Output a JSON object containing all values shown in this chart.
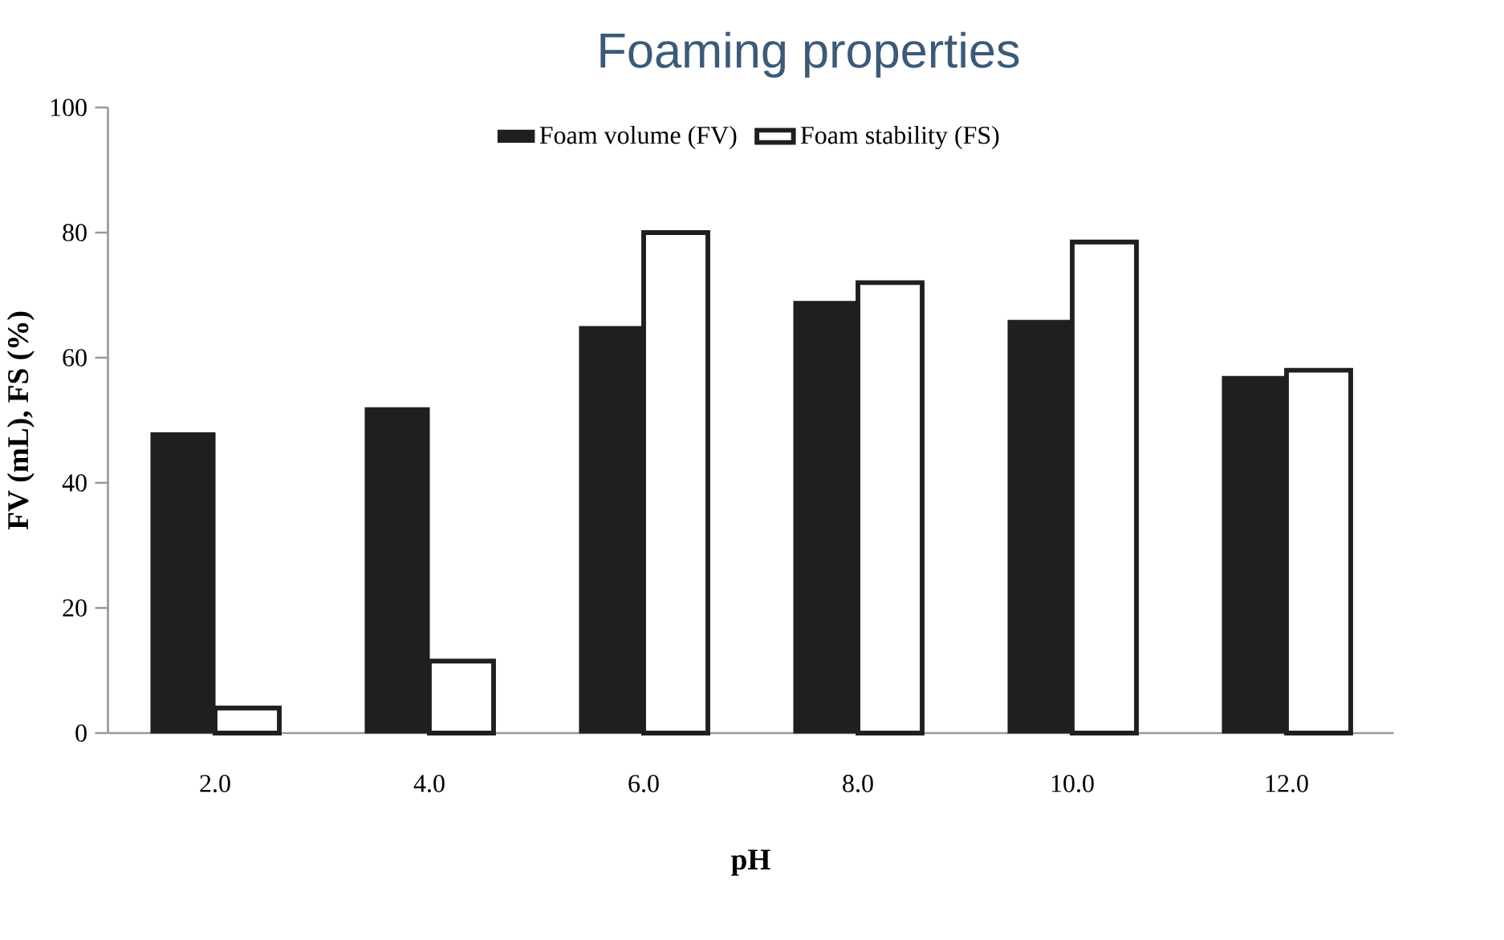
{
  "chart_data": {
    "type": "bar",
    "title": "Foaming properties",
    "xlabel": "pH",
    "ylabel": "FV (mL), FS (%)",
    "categories": [
      "2.0",
      "4.0",
      "6.0",
      "8.0",
      "10.0",
      "12.0"
    ],
    "series": [
      {
        "name": "Foam volume (FV)",
        "color": "#1f1f1f",
        "values": [
          48,
          52,
          65,
          69,
          66,
          57
        ]
      },
      {
        "name": "Foam stability (FS)",
        "color": "#ffffff",
        "values": [
          4,
          11.5,
          80,
          72,
          78.5,
          58
        ]
      }
    ],
    "ylim": [
      0,
      100
    ],
    "yticks": [
      0,
      20,
      40,
      60,
      80,
      100
    ],
    "legend": "top"
  }
}
